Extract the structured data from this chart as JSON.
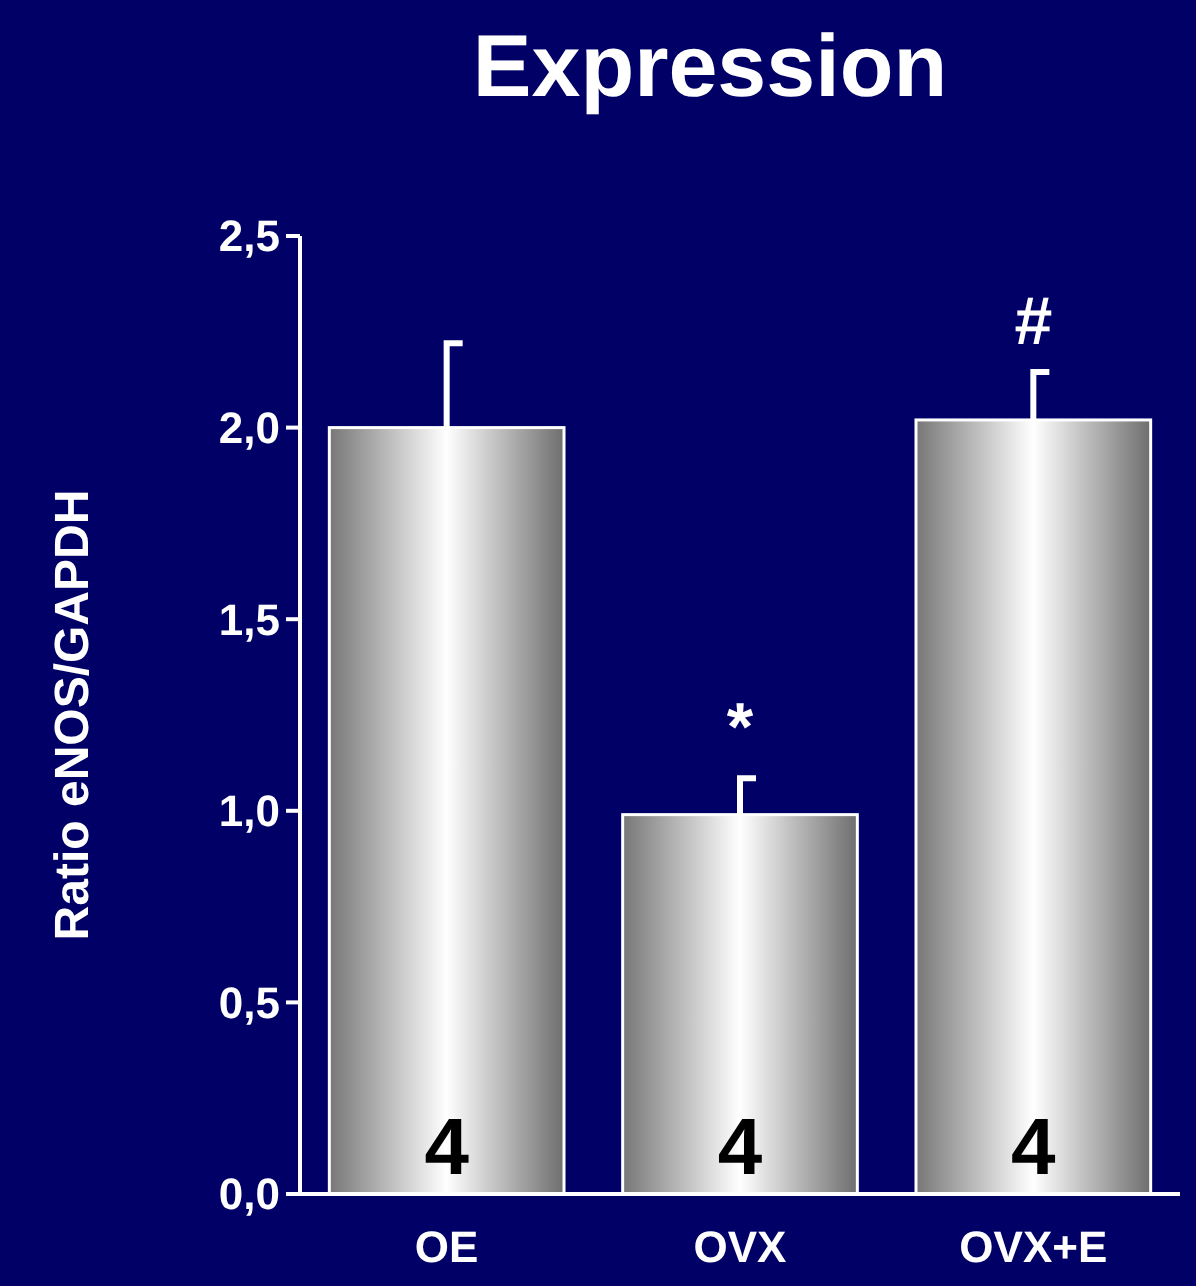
{
  "chart_data": {
    "type": "bar",
    "title": "Expression",
    "ylabel": "Ratio eNOS/GAPDH",
    "categories": [
      "OE",
      "OVX",
      "OVX+E"
    ],
    "values": [
      2.0,
      0.99,
      2.02
    ],
    "errors": [
      [
        2.0,
        2.22
      ],
      [
        0.99,
        1.085
      ],
      [
        2.02,
        2.145
      ]
    ],
    "color": "#ffffff",
    "ylim": [
      0,
      2.5
    ],
    "yticks": [
      {
        "value": 0,
        "label": "0,0"
      },
      {
        "value": 0.5,
        "label": "0,5"
      },
      {
        "value": 1,
        "label": "1,0"
      },
      {
        "value": 1.5,
        "label": "1,5"
      },
      {
        "value": 2,
        "label": "2,0"
      },
      {
        "value": 2.5,
        "label": "2,5"
      }
    ],
    "annotations": [
      "4",
      "4",
      "4",
      "*",
      "#"
    ],
    "grid": false
  }
}
